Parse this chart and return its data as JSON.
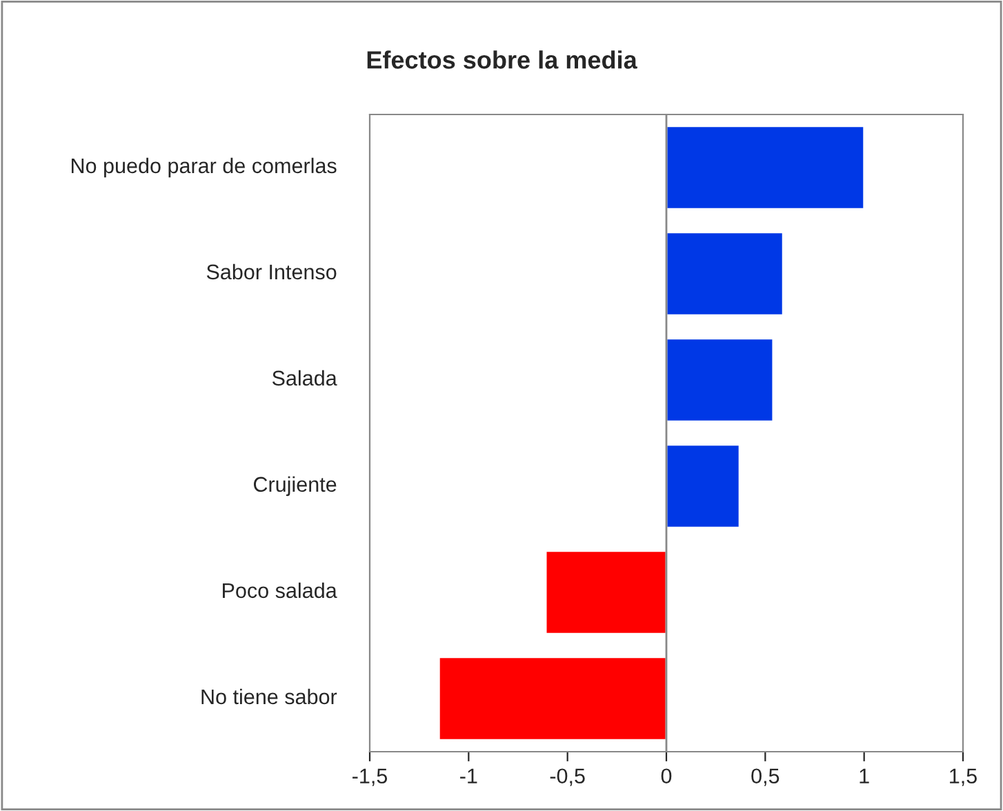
{
  "chart_data": {
    "type": "bar",
    "orientation": "horizontal",
    "title": "Efectos sobre la media",
    "categories": [
      "No puedo parar de comerlas",
      "Sabor Intenso",
      "Salada",
      "Crujiente",
      "Poco salada",
      "No tiene sabor"
    ],
    "values": [
      1.0,
      0.59,
      0.54,
      0.37,
      -0.61,
      -1.15
    ],
    "colors": [
      "#0038e6",
      "#0038e6",
      "#0038e6",
      "#0038e6",
      "#ff0000",
      "#ff0000"
    ],
    "xlim": [
      -1.5,
      1.5
    ],
    "xticks": [
      {
        "value": -1.5,
        "label": "-1,5"
      },
      {
        "value": -1,
        "label": "-1"
      },
      {
        "value": -0.5,
        "label": "-0,5"
      },
      {
        "value": 0,
        "label": "0"
      },
      {
        "value": 0.5,
        "label": "0,5"
      },
      {
        "value": 1,
        "label": "1"
      },
      {
        "value": 1.5,
        "label": "1,5"
      }
    ],
    "ref_lines": [
      {
        "axis": "x",
        "value": 0,
        "color": "#888888"
      }
    ],
    "grid": false
  }
}
